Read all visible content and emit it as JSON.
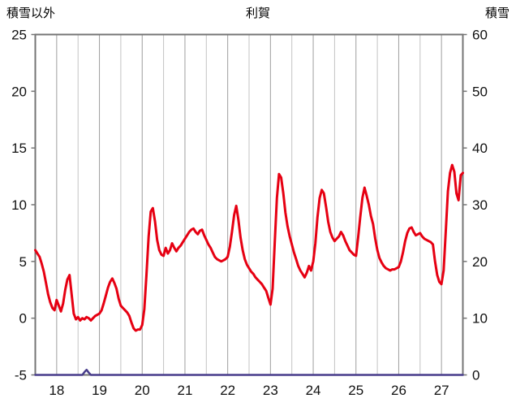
{
  "header": {
    "left_axis_title": "積雪以外",
    "title": "利賀",
    "right_axis_title": "積雪"
  },
  "chart_data": {
    "type": "line",
    "title": "利賀",
    "legend": "none",
    "grid": "vertical-only",
    "background": "#ffffff",
    "x_axis": {
      "label": "",
      "range": [
        17.5,
        27.5
      ],
      "ticks": [
        18,
        19,
        20,
        21,
        22,
        23,
        24,
        25,
        26,
        27
      ],
      "gridline_interval": 0.5
    },
    "y_axis_left": {
      "label": "積雪以外",
      "range": [
        -5,
        25
      ],
      "ticks": [
        -5,
        0,
        5,
        10,
        15,
        20,
        25
      ]
    },
    "y_axis_right": {
      "label": "積雪",
      "range": [
        0,
        60
      ],
      "ticks": [
        0,
        10,
        20,
        30,
        40,
        50,
        60
      ]
    },
    "style": {
      "frame_color": "#757575",
      "grid_major_color": "#9e9e9e",
      "grid_minor_color": "#c3c3c3",
      "tick_text_color": "#111111"
    },
    "series": [
      {
        "name": "積雪以外",
        "axis": "left",
        "color": "#e60012",
        "line_width": 3,
        "points": [
          [
            17.5,
            6.0
          ],
          [
            17.55,
            5.7
          ],
          [
            17.6,
            5.4
          ],
          [
            17.65,
            4.8
          ],
          [
            17.7,
            4.1
          ],
          [
            17.75,
            3.1
          ],
          [
            17.8,
            2.1
          ],
          [
            17.85,
            1.4
          ],
          [
            17.9,
            0.9
          ],
          [
            17.95,
            0.7
          ],
          [
            18.0,
            1.6
          ],
          [
            18.05,
            1.1
          ],
          [
            18.1,
            0.6
          ],
          [
            18.15,
            1.3
          ],
          [
            18.2,
            2.5
          ],
          [
            18.25,
            3.4
          ],
          [
            18.3,
            3.8
          ],
          [
            18.35,
            2.1
          ],
          [
            18.4,
            0.4
          ],
          [
            18.45,
            -0.1
          ],
          [
            18.5,
            0.1
          ],
          [
            18.55,
            -0.2
          ],
          [
            18.6,
            0.0
          ],
          [
            18.65,
            -0.1
          ],
          [
            18.7,
            0.1
          ],
          [
            18.75,
            0.0
          ],
          [
            18.8,
            -0.2
          ],
          [
            18.85,
            0.0
          ],
          [
            18.9,
            0.2
          ],
          [
            18.95,
            0.3
          ],
          [
            19.0,
            0.4
          ],
          [
            19.05,
            0.7
          ],
          [
            19.1,
            1.3
          ],
          [
            19.15,
            2.0
          ],
          [
            19.2,
            2.7
          ],
          [
            19.25,
            3.2
          ],
          [
            19.3,
            3.5
          ],
          [
            19.35,
            3.1
          ],
          [
            19.4,
            2.6
          ],
          [
            19.45,
            1.7
          ],
          [
            19.5,
            1.1
          ],
          [
            19.55,
            0.9
          ],
          [
            19.6,
            0.7
          ],
          [
            19.65,
            0.5
          ],
          [
            19.7,
            0.2
          ],
          [
            19.75,
            -0.4
          ],
          [
            19.8,
            -0.9
          ],
          [
            19.85,
            -1.1
          ],
          [
            19.9,
            -1.0
          ],
          [
            19.95,
            -1.0
          ],
          [
            20.0,
            -0.6
          ],
          [
            20.05,
            0.8
          ],
          [
            20.1,
            3.8
          ],
          [
            20.15,
            7.2
          ],
          [
            20.2,
            9.4
          ],
          [
            20.25,
            9.7
          ],
          [
            20.3,
            8.5
          ],
          [
            20.35,
            6.9
          ],
          [
            20.4,
            6.0
          ],
          [
            20.45,
            5.6
          ],
          [
            20.5,
            5.5
          ],
          [
            20.55,
            6.2
          ],
          [
            20.6,
            5.7
          ],
          [
            20.65,
            6.0
          ],
          [
            20.7,
            6.6
          ],
          [
            20.75,
            6.2
          ],
          [
            20.8,
            5.9
          ],
          [
            20.85,
            6.2
          ],
          [
            20.9,
            6.4
          ],
          [
            20.95,
            6.7
          ],
          [
            21.0,
            7.0
          ],
          [
            21.05,
            7.3
          ],
          [
            21.1,
            7.6
          ],
          [
            21.15,
            7.8
          ],
          [
            21.2,
            7.9
          ],
          [
            21.25,
            7.6
          ],
          [
            21.3,
            7.4
          ],
          [
            21.35,
            7.7
          ],
          [
            21.4,
            7.8
          ],
          [
            21.45,
            7.3
          ],
          [
            21.5,
            6.9
          ],
          [
            21.55,
            6.5
          ],
          [
            21.6,
            6.2
          ],
          [
            21.65,
            5.8
          ],
          [
            21.7,
            5.4
          ],
          [
            21.75,
            5.2
          ],
          [
            21.8,
            5.1
          ],
          [
            21.85,
            5.0
          ],
          [
            21.9,
            5.1
          ],
          [
            21.95,
            5.2
          ],
          [
            22.0,
            5.4
          ],
          [
            22.05,
            6.3
          ],
          [
            22.1,
            7.6
          ],
          [
            22.15,
            9.1
          ],
          [
            22.2,
            9.9
          ],
          [
            22.25,
            8.7
          ],
          [
            22.3,
            7.1
          ],
          [
            22.35,
            6.0
          ],
          [
            22.4,
            5.2
          ],
          [
            22.45,
            4.7
          ],
          [
            22.5,
            4.4
          ],
          [
            22.55,
            4.1
          ],
          [
            22.6,
            3.9
          ],
          [
            22.65,
            3.6
          ],
          [
            22.7,
            3.4
          ],
          [
            22.75,
            3.2
          ],
          [
            22.8,
            3.0
          ],
          [
            22.85,
            2.7
          ],
          [
            22.9,
            2.4
          ],
          [
            22.95,
            1.8
          ],
          [
            23.0,
            1.2
          ],
          [
            23.05,
            2.6
          ],
          [
            23.1,
            6.6
          ],
          [
            23.15,
            10.6
          ],
          [
            23.2,
            12.7
          ],
          [
            23.25,
            12.4
          ],
          [
            23.3,
            11.0
          ],
          [
            23.35,
            9.3
          ],
          [
            23.4,
            8.1
          ],
          [
            23.45,
            7.2
          ],
          [
            23.5,
            6.5
          ],
          [
            23.55,
            5.8
          ],
          [
            23.6,
            5.2
          ],
          [
            23.65,
            4.6
          ],
          [
            23.7,
            4.2
          ],
          [
            23.75,
            3.9
          ],
          [
            23.8,
            3.6
          ],
          [
            23.85,
            4.0
          ],
          [
            23.9,
            4.6
          ],
          [
            23.95,
            4.2
          ],
          [
            24.0,
            5.0
          ],
          [
            24.05,
            6.6
          ],
          [
            24.1,
            8.9
          ],
          [
            24.15,
            10.6
          ],
          [
            24.2,
            11.3
          ],
          [
            24.25,
            11.0
          ],
          [
            24.3,
            9.8
          ],
          [
            24.35,
            8.5
          ],
          [
            24.4,
            7.6
          ],
          [
            24.45,
            7.1
          ],
          [
            24.5,
            6.8
          ],
          [
            24.55,
            7.0
          ],
          [
            24.6,
            7.2
          ],
          [
            24.65,
            7.6
          ],
          [
            24.7,
            7.3
          ],
          [
            24.75,
            6.8
          ],
          [
            24.8,
            6.4
          ],
          [
            24.85,
            6.0
          ],
          [
            24.9,
            5.8
          ],
          [
            24.95,
            5.6
          ],
          [
            25.0,
            5.5
          ],
          [
            25.05,
            7.1
          ],
          [
            25.1,
            8.9
          ],
          [
            25.15,
            10.6
          ],
          [
            25.2,
            11.5
          ],
          [
            25.25,
            10.8
          ],
          [
            25.3,
            10.0
          ],
          [
            25.35,
            9.0
          ],
          [
            25.4,
            8.3
          ],
          [
            25.45,
            7.0
          ],
          [
            25.5,
            6.0
          ],
          [
            25.55,
            5.3
          ],
          [
            25.6,
            4.9
          ],
          [
            25.65,
            4.6
          ],
          [
            25.7,
            4.4
          ],
          [
            25.75,
            4.3
          ],
          [
            25.8,
            4.2
          ],
          [
            25.85,
            4.3
          ],
          [
            25.9,
            4.3
          ],
          [
            25.95,
            4.4
          ],
          [
            26.0,
            4.5
          ],
          [
            26.05,
            5.0
          ],
          [
            26.1,
            5.8
          ],
          [
            26.15,
            6.8
          ],
          [
            26.2,
            7.5
          ],
          [
            26.25,
            7.9
          ],
          [
            26.3,
            8.0
          ],
          [
            26.35,
            7.6
          ],
          [
            26.4,
            7.3
          ],
          [
            26.45,
            7.4
          ],
          [
            26.5,
            7.5
          ],
          [
            26.55,
            7.2
          ],
          [
            26.6,
            7.0
          ],
          [
            26.65,
            6.9
          ],
          [
            26.7,
            6.8
          ],
          [
            26.75,
            6.7
          ],
          [
            26.8,
            6.5
          ],
          [
            26.85,
            5.0
          ],
          [
            26.9,
            3.8
          ],
          [
            26.95,
            3.2
          ],
          [
            27.0,
            3.0
          ],
          [
            27.05,
            4.2
          ],
          [
            27.1,
            7.6
          ],
          [
            27.15,
            11.2
          ],
          [
            27.2,
            12.8
          ],
          [
            27.25,
            13.5
          ],
          [
            27.3,
            12.9
          ],
          [
            27.35,
            11.0
          ],
          [
            27.4,
            10.4
          ],
          [
            27.45,
            12.6
          ],
          [
            27.5,
            12.8
          ]
        ]
      },
      {
        "name": "積雪",
        "axis": "right",
        "color": "#483d8b",
        "line_width": 2.5,
        "points": [
          [
            17.5,
            0
          ],
          [
            18.4,
            0
          ],
          [
            18.6,
            0
          ],
          [
            18.65,
            0.5
          ],
          [
            18.7,
            0.9
          ],
          [
            18.75,
            0.4
          ],
          [
            18.8,
            0
          ],
          [
            27.5,
            0
          ]
        ]
      }
    ]
  }
}
